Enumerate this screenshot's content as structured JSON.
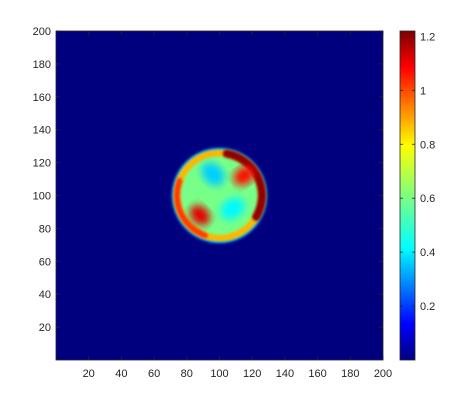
{
  "chart_data": {
    "type": "heatmap",
    "title": "",
    "xlabel": "",
    "ylabel": "",
    "xlim": [
      0,
      200
    ],
    "ylim": [
      0,
      200
    ],
    "x_ticks": [
      20,
      40,
      60,
      80,
      100,
      120,
      140,
      160,
      180,
      200
    ],
    "y_ticks": [
      20,
      40,
      60,
      80,
      100,
      120,
      140,
      160,
      180,
      200
    ],
    "grid": false,
    "colormap": "jet",
    "colorbar": {
      "location": "right",
      "range": [
        0,
        1.22
      ],
      "ticks": [
        0.2,
        0.4,
        0.6,
        0.8,
        1,
        1.2
      ]
    },
    "background_value": 0,
    "features": [
      {
        "shape": "disk",
        "center": [
          100,
          100
        ],
        "radius": 28,
        "value": 0.6
      },
      {
        "shape": "ring",
        "center": [
          100,
          100
        ],
        "radius": 28,
        "width": 4,
        "value": 0.85
      },
      {
        "shape": "crescent",
        "center": [
          112,
          115
        ],
        "value": 1.2
      },
      {
        "shape": "blob",
        "center": [
          88,
          88
        ],
        "value": 1.1
      },
      {
        "shape": "blob",
        "center": [
          115,
          112
        ],
        "value": 1.05
      },
      {
        "shape": "blob",
        "center": [
          96,
          113
        ],
        "value": 0.4
      },
      {
        "shape": "blob",
        "center": [
          108,
          92
        ],
        "value": 0.45
      }
    ]
  }
}
